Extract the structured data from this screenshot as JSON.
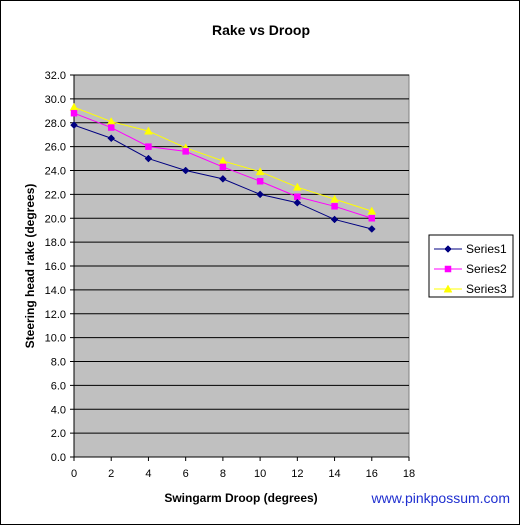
{
  "chart_data": {
    "type": "line",
    "title": "Rake vs Droop",
    "xlabel": "Swingarm Droop (degrees)",
    "ylabel": "Steering head rake (degrees)",
    "xlim": [
      0,
      18
    ],
    "ylim": [
      0,
      32
    ],
    "x_ticks": [
      "0",
      "2",
      "4",
      "6",
      "8",
      "10",
      "12",
      "14",
      "16",
      "18"
    ],
    "y_ticks": [
      "0.0",
      "2.0",
      "4.0",
      "6.0",
      "8.0",
      "10.0",
      "12.0",
      "14.0",
      "16.0",
      "18.0",
      "20.0",
      "22.0",
      "24.0",
      "26.0",
      "28.0",
      "30.0",
      "32.0"
    ],
    "grid": "horizontal",
    "legend_position": "right",
    "series": [
      {
        "name": "Series1",
        "color": "#000080",
        "marker": "diamond",
        "x": [
          0,
          2,
          4,
          6,
          8,
          10,
          12,
          14,
          16
        ],
        "values": [
          27.8,
          26.7,
          25.0,
          24.0,
          23.3,
          22.0,
          21.3,
          19.9,
          19.1
        ]
      },
      {
        "name": "Series2",
        "color": "#ff00ff",
        "marker": "square",
        "x": [
          0,
          2,
          4,
          6,
          8,
          10,
          12,
          14,
          16
        ],
        "values": [
          28.8,
          27.6,
          26.0,
          25.6,
          24.3,
          23.1,
          21.8,
          21.0,
          20.0
        ]
      },
      {
        "name": "Series3",
        "color": "#ffff00",
        "marker": "triangle",
        "x": [
          0,
          2,
          4,
          6,
          8,
          10,
          12,
          14,
          16
        ],
        "values": [
          29.3,
          28.1,
          27.3,
          25.9,
          24.8,
          23.9,
          22.6,
          21.6,
          20.6
        ]
      }
    ]
  },
  "watermark": "www.pinkpossum.com",
  "colors": {
    "plot_background": "#c0c0c0",
    "grid": "#000000"
  }
}
